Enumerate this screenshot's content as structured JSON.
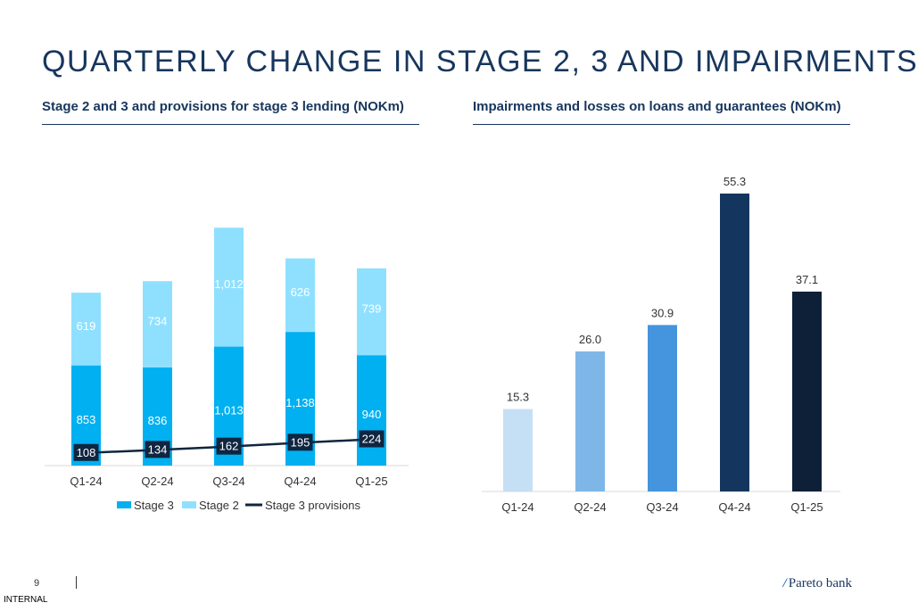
{
  "page": {
    "title": "QUARTERLY CHANGE IN STAGE 2, 3 AND IMPAIRMENTS",
    "page_number": "9",
    "classification": "INTERNAL",
    "brand": "Pareto bank",
    "brand_mark": "/"
  },
  "chart_data": [
    {
      "type": "bar",
      "title": "Stage 2 and 3 and provisions for stage 3 lending (NOKm)",
      "categories": [
        "Q1-24",
        "Q2-24",
        "Q3-24",
        "Q4-24",
        "Q1-25"
      ],
      "series": [
        {
          "name": "Stage 3",
          "kind": "stacked-bar",
          "color": "#00b0f0",
          "values": [
            853,
            836,
            1013,
            1138,
            940
          ],
          "labels": [
            "853",
            "836",
            "1,013",
            "1,138",
            "940"
          ]
        },
        {
          "name": "Stage 2",
          "kind": "stacked-bar",
          "color": "#8fe0ff",
          "values": [
            619,
            734,
            1012,
            626,
            739
          ],
          "labels": [
            "619",
            "734",
            "1,012",
            "626",
            "739"
          ]
        },
        {
          "name": "Stage 3 provisions",
          "kind": "line",
          "color": "#0f2540",
          "values": [
            108,
            134,
            162,
            195,
            224
          ],
          "labels": [
            "108",
            "134",
            "162",
            "195",
            "224"
          ]
        }
      ],
      "ylim": [
        0,
        2050
      ],
      "legend": "bottom",
      "grid": false
    },
    {
      "type": "bar",
      "title": "Impairments and losses on loans and guarantees (NOKm)",
      "categories": [
        "Q1-24",
        "Q2-24",
        "Q3-24",
        "Q4-24",
        "Q1-25"
      ],
      "values": [
        15.3,
        26.0,
        30.9,
        55.3,
        37.1
      ],
      "labels": [
        "15.3",
        "26.0",
        "30.9",
        "55.3",
        "37.1"
      ],
      "colors": [
        "#c5dff5",
        "#7fb6e8",
        "#4595de",
        "#14365e",
        "#0d2038"
      ],
      "ylim": [
        0,
        55.3
      ],
      "grid": false
    }
  ]
}
